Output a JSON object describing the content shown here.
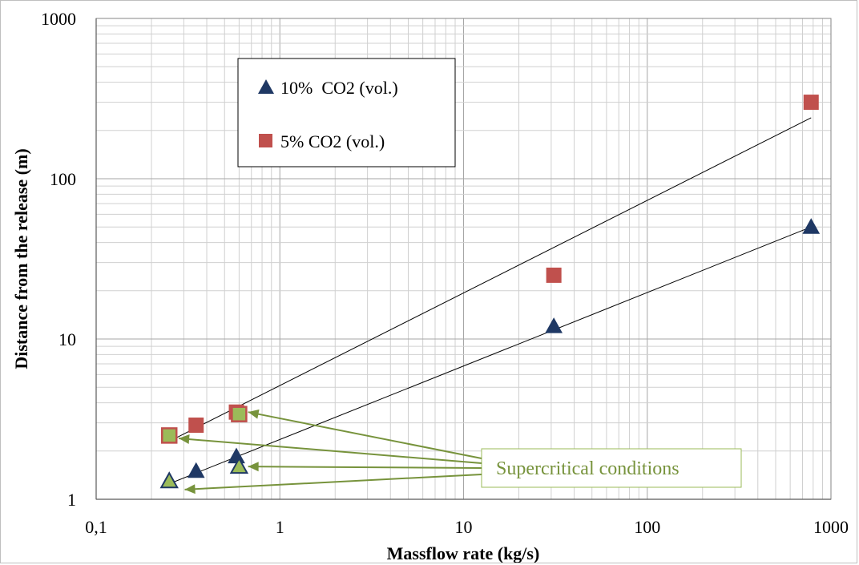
{
  "chart_data": {
    "type": "scatter",
    "xlabel": "Massflow rate (kg/s)",
    "ylabel": "Distance from the release (m)",
    "x_scale": "log",
    "y_scale": "log",
    "xlim": [
      0.1,
      1000
    ],
    "ylim": [
      1,
      1000
    ],
    "x_ticks": [
      {
        "value": 0.1,
        "label": "0,1"
      },
      {
        "value": 1,
        "label": "1"
      },
      {
        "value": 10,
        "label": "10"
      },
      {
        "value": 100,
        "label": "100"
      },
      {
        "value": 1000,
        "label": "1000"
      }
    ],
    "y_ticks": [
      {
        "value": 1,
        "label": "1"
      },
      {
        "value": 10,
        "label": "10"
      },
      {
        "value": 100,
        "label": "100"
      },
      {
        "value": 1000,
        "label": "1000"
      }
    ],
    "grid": true,
    "legend_position": "top-left",
    "series": [
      {
        "name": "10%  CO2 (vol.)",
        "marker": "triangle",
        "color": "#1f3864",
        "points": [
          {
            "x": 0.25,
            "y": 1.3,
            "supercritical": true
          },
          {
            "x": 0.35,
            "y": 1.5,
            "supercritical": false
          },
          {
            "x": 0.58,
            "y": 1.85,
            "supercritical": false
          },
          {
            "x": 0.6,
            "y": 1.6,
            "supercritical": true
          },
          {
            "x": 31,
            "y": 12,
            "supercritical": false
          },
          {
            "x": 780,
            "y": 50,
            "supercritical": false
          }
        ],
        "trendline": [
          {
            "x": 0.25,
            "y": 1.25
          },
          {
            "x": 780,
            "y": 50
          }
        ]
      },
      {
        "name": "5% CO2 (vol.)",
        "marker": "square",
        "color": "#c0504d",
        "points": [
          {
            "x": 0.25,
            "y": 2.5,
            "supercritical": true
          },
          {
            "x": 0.35,
            "y": 2.9,
            "supercritical": false
          },
          {
            "x": 0.58,
            "y": 3.5,
            "supercritical": false
          },
          {
            "x": 0.6,
            "y": 3.4,
            "supercritical": true
          },
          {
            "x": 31,
            "y": 25,
            "supercritical": false
          },
          {
            "x": 780,
            "y": 300,
            "supercritical": false
          }
        ],
        "trendline": [
          {
            "x": 0.25,
            "y": 2.3
          },
          {
            "x": 780,
            "y": 240
          }
        ]
      }
    ],
    "annotation": {
      "text": "Supercritical conditions",
      "color": "#77933c",
      "targets": [
        {
          "x": 0.62,
          "y": 3.5
        },
        {
          "x": 0.26,
          "y": 2.4
        },
        {
          "x": 0.62,
          "y": 1.6
        },
        {
          "x": 0.28,
          "y": 1.15
        }
      ]
    }
  }
}
